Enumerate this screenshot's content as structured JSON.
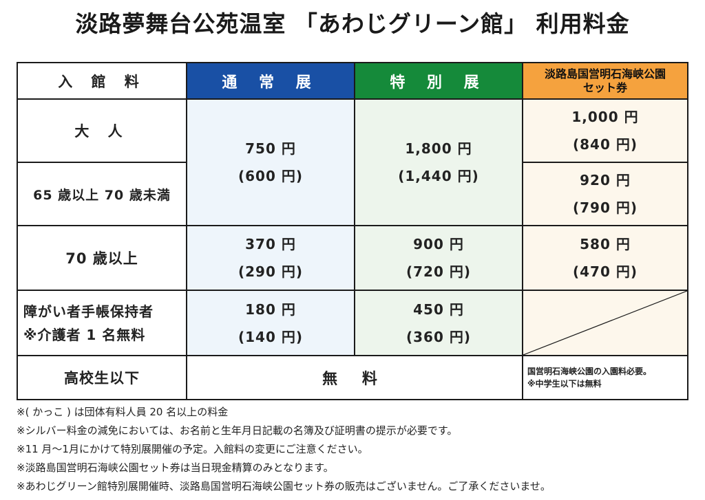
{
  "title": "淡路夢舞台公苑温室 「あわじグリーン館」 利用料金",
  "table": {
    "header": {
      "category": "入 館 料",
      "normal": "通 常 展",
      "special": "特 別 展",
      "set_line1": "淡路島国営明石海峡公園",
      "set_line2": "セット券"
    },
    "rows": {
      "adult": {
        "label": "大 人",
        "set_price": "1,000 円",
        "set_group": "(840 円)"
      },
      "senior65": {
        "label": "65 歳以上 70 歳未満",
        "set_price": "920 円",
        "set_group": "(790 円)"
      },
      "adult_senior65_shared": {
        "normal_price": "750 円",
        "normal_group": "(600 円)",
        "special_price": "1,800 円",
        "special_group": "(1,440 円)"
      },
      "senior70": {
        "label": "70 歳以上",
        "normal_price": "370 円",
        "normal_group": "(290 円)",
        "special_price": "900 円",
        "special_group": "(720 円)",
        "set_price": "580 円",
        "set_group": "(470 円)"
      },
      "disability": {
        "label_line1": "障がい者手帳保持者",
        "label_line2": "※介護者 1 名無料",
        "normal_price": "180 円",
        "normal_group": "(140 円)",
        "special_price": "450 円",
        "special_group": "(360 円)"
      },
      "student": {
        "label": "高校生以下",
        "free": "無 料",
        "set_note_line1": "国営明石海峡公園の入園料必要。",
        "set_note_line2": "※中学生以下は無料"
      }
    }
  },
  "notes": [
    "※( かっこ ) は団体有料人員 20 名以上の料金",
    "※シルバー料金の減免においては、お名前と生年月日記載の名簿及び証明書の提示が必要です。",
    "※11 月～1月にかけて特別展開催の予定。入館料の変更にご注意ください。",
    "※淡路島国営明石海峡公園セット券は当日現金精算のみとなります。",
    "※あわじグリーン館特別展開催時、淡路島国営明石海峡公園セット券の販売はございません。ご了承くださいませ。"
  ],
  "colors": {
    "normal_header": "#1950a5",
    "special_header": "#158a3a",
    "set_header": "#f5a23e"
  }
}
